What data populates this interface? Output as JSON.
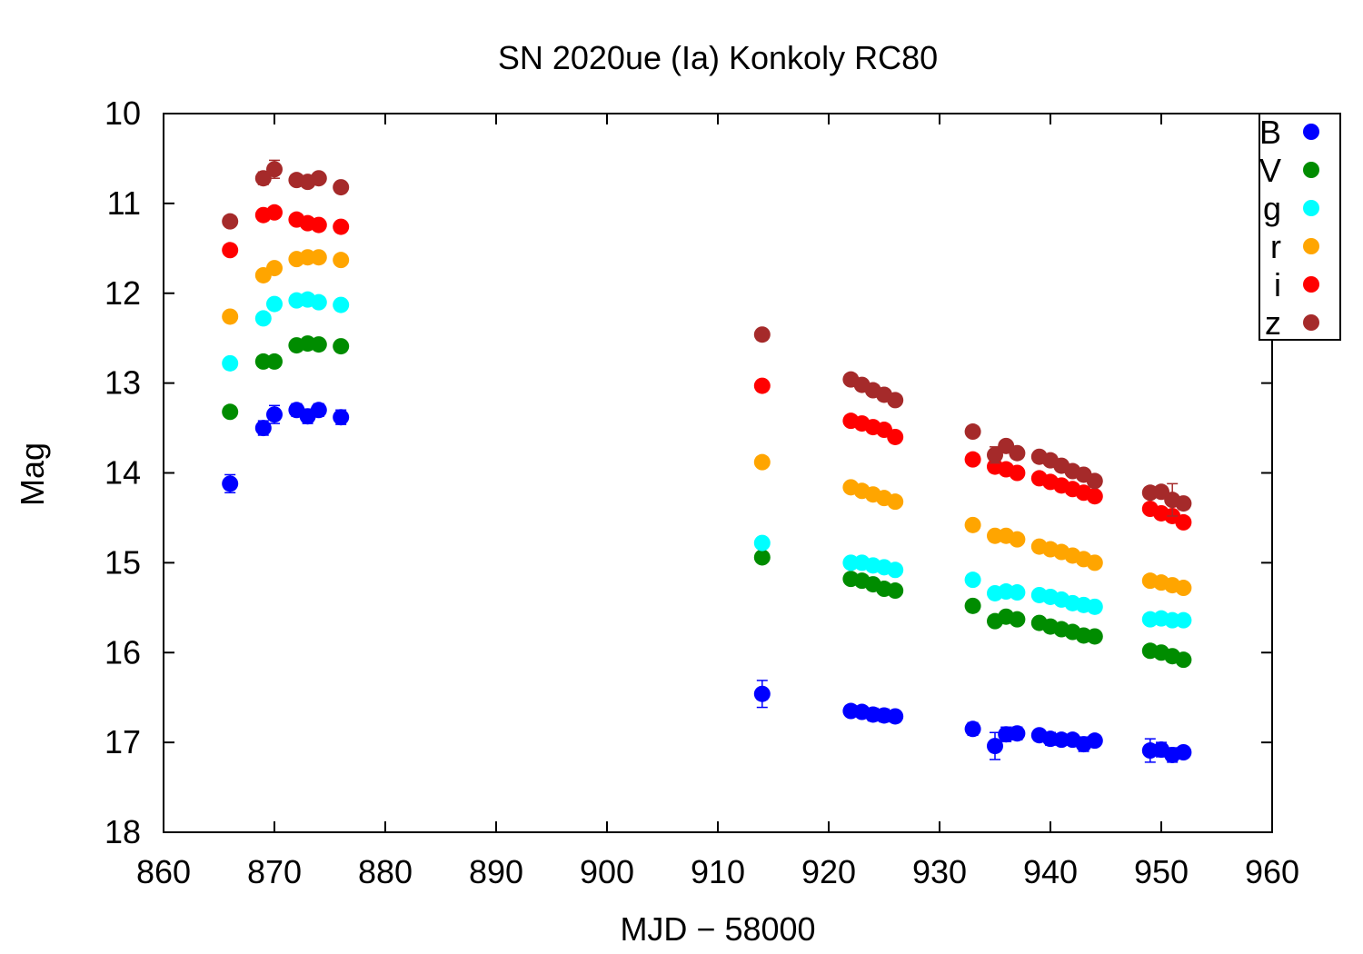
{
  "chart_data": {
    "type": "scatter",
    "title": "SN 2020ue (Ia) Konkoly RC80",
    "xlabel": "MJD − 58000",
    "ylabel": "Mag",
    "xlim": [
      860,
      960
    ],
    "ylim": [
      18,
      10
    ],
    "y_inverted": true,
    "x_ticks": [
      860,
      870,
      880,
      890,
      900,
      910,
      920,
      930,
      940,
      950,
      960
    ],
    "y_ticks": [
      10,
      11,
      12,
      13,
      14,
      15,
      16,
      17,
      18
    ],
    "grid": false,
    "legend_position": "top-right",
    "series": [
      {
        "name": "B",
        "color": "#0000ff",
        "x": [
          866,
          869,
          870,
          872,
          873,
          874,
          876,
          914,
          922,
          923,
          924,
          925,
          926,
          933,
          935,
          936,
          937,
          939,
          940,
          941,
          942,
          943,
          944,
          949,
          950,
          951,
          952
        ],
        "y": [
          14.12,
          13.5,
          13.35,
          13.3,
          13.37,
          13.3,
          13.38,
          16.46,
          16.65,
          16.66,
          16.69,
          16.7,
          16.71,
          16.85,
          17.04,
          16.91,
          16.9,
          16.92,
          16.96,
          16.97,
          16.97,
          17.02,
          16.98,
          17.09,
          17.08,
          17.14,
          17.11
        ],
        "err": [
          0.1,
          0.08,
          0.1,
          0.07,
          0.08,
          0.07,
          0.08,
          0.15,
          0.06,
          0.06,
          0.07,
          0.07,
          0.06,
          0.07,
          0.15,
          0.08,
          0.07,
          0.06,
          0.07,
          0.06,
          0.06,
          0.08,
          0.06,
          0.13,
          0.08,
          0.08,
          0.06
        ]
      },
      {
        "name": "V",
        "color": "#008c00",
        "x": [
          866,
          869,
          870,
          872,
          873,
          874,
          876,
          914,
          922,
          923,
          924,
          925,
          926,
          933,
          935,
          936,
          937,
          939,
          940,
          941,
          942,
          943,
          944,
          949,
          950,
          951,
          952
        ],
        "y": [
          13.32,
          12.76,
          12.76,
          12.58,
          12.56,
          12.57,
          12.59,
          14.94,
          15.18,
          15.2,
          15.24,
          15.29,
          15.31,
          15.48,
          15.65,
          15.6,
          15.63,
          15.67,
          15.71,
          15.74,
          15.77,
          15.81,
          15.82,
          15.98,
          16.0,
          16.04,
          16.08
        ],
        "err": [
          0.04,
          0.04,
          0.03,
          0.03,
          0.03,
          0.03,
          0.03,
          0.04,
          0.04,
          0.04,
          0.04,
          0.04,
          0.04,
          0.04,
          0.05,
          0.04,
          0.04,
          0.04,
          0.04,
          0.04,
          0.04,
          0.04,
          0.04,
          0.05,
          0.04,
          0.04,
          0.04
        ]
      },
      {
        "name": "g",
        "color": "#00ffff",
        "x": [
          866,
          869,
          870,
          872,
          873,
          874,
          876,
          914,
          922,
          923,
          924,
          925,
          926,
          933,
          935,
          936,
          937,
          939,
          940,
          941,
          942,
          943,
          944,
          949,
          950,
          951,
          952
        ],
        "y": [
          12.78,
          12.28,
          12.12,
          12.08,
          12.07,
          12.1,
          12.13,
          14.78,
          15.0,
          15.0,
          15.03,
          15.05,
          15.08,
          15.19,
          15.34,
          15.32,
          15.33,
          15.36,
          15.38,
          15.41,
          15.45,
          15.47,
          15.49,
          15.63,
          15.62,
          15.64,
          15.64
        ],
        "err": [
          0.03,
          0.03,
          0.03,
          0.03,
          0.03,
          0.03,
          0.03,
          0.04,
          0.03,
          0.03,
          0.03,
          0.03,
          0.03,
          0.03,
          0.04,
          0.03,
          0.03,
          0.03,
          0.03,
          0.03,
          0.03,
          0.03,
          0.03,
          0.04,
          0.03,
          0.03,
          0.03
        ]
      },
      {
        "name": "r",
        "color": "#ffa500",
        "x": [
          866,
          869,
          870,
          872,
          873,
          874,
          876,
          914,
          922,
          923,
          924,
          925,
          926,
          933,
          935,
          936,
          937,
          939,
          940,
          941,
          942,
          943,
          944,
          949,
          950,
          951,
          952
        ],
        "y": [
          12.26,
          11.8,
          11.72,
          11.62,
          11.6,
          11.6,
          11.63,
          13.88,
          14.16,
          14.2,
          14.24,
          14.28,
          14.32,
          14.58,
          14.7,
          14.7,
          14.74,
          14.82,
          14.85,
          14.88,
          14.92,
          14.96,
          15.0,
          15.2,
          15.22,
          15.25,
          15.28
        ],
        "err": [
          0.03,
          0.03,
          0.03,
          0.03,
          0.03,
          0.03,
          0.03,
          0.04,
          0.03,
          0.03,
          0.03,
          0.03,
          0.03,
          0.03,
          0.04,
          0.03,
          0.03,
          0.03,
          0.03,
          0.03,
          0.03,
          0.03,
          0.03,
          0.04,
          0.03,
          0.03,
          0.03
        ]
      },
      {
        "name": "i",
        "color": "#ff0000",
        "x": [
          866,
          869,
          870,
          872,
          873,
          874,
          876,
          914,
          922,
          923,
          924,
          925,
          926,
          933,
          935,
          936,
          937,
          939,
          940,
          941,
          942,
          943,
          944,
          949,
          950,
          951,
          952
        ],
        "y": [
          11.52,
          11.13,
          11.1,
          11.18,
          11.22,
          11.24,
          11.26,
          13.03,
          13.42,
          13.45,
          13.49,
          13.52,
          13.6,
          13.85,
          13.93,
          13.96,
          14.0,
          14.06,
          14.1,
          14.14,
          14.18,
          14.22,
          14.26,
          14.4,
          14.45,
          14.48,
          14.55
        ],
        "err": [
          0.03,
          0.04,
          0.03,
          0.03,
          0.03,
          0.03,
          0.03,
          0.04,
          0.03,
          0.03,
          0.03,
          0.03,
          0.03,
          0.03,
          0.04,
          0.03,
          0.03,
          0.03,
          0.03,
          0.03,
          0.03,
          0.03,
          0.03,
          0.04,
          0.03,
          0.03,
          0.03
        ]
      },
      {
        "name": "z",
        "color": "#a52a2a",
        "x": [
          866,
          869,
          870,
          872,
          873,
          874,
          876,
          914,
          922,
          923,
          924,
          925,
          926,
          933,
          935,
          936,
          937,
          939,
          940,
          941,
          942,
          943,
          944,
          949,
          950,
          951,
          952
        ],
        "y": [
          11.2,
          10.72,
          10.62,
          10.74,
          10.76,
          10.72,
          10.82,
          12.46,
          12.96,
          13.02,
          13.08,
          13.13,
          13.19,
          13.54,
          13.8,
          13.7,
          13.78,
          13.82,
          13.86,
          13.92,
          13.98,
          14.02,
          14.09,
          14.22,
          14.21,
          14.3,
          14.34
        ],
        "err": [
          0.04,
          0.07,
          0.1,
          0.04,
          0.04,
          0.04,
          0.04,
          0.04,
          0.04,
          0.04,
          0.04,
          0.04,
          0.04,
          0.04,
          0.09,
          0.06,
          0.04,
          0.05,
          0.04,
          0.04,
          0.04,
          0.04,
          0.04,
          0.05,
          0.04,
          0.18,
          0.06
        ]
      }
    ]
  }
}
